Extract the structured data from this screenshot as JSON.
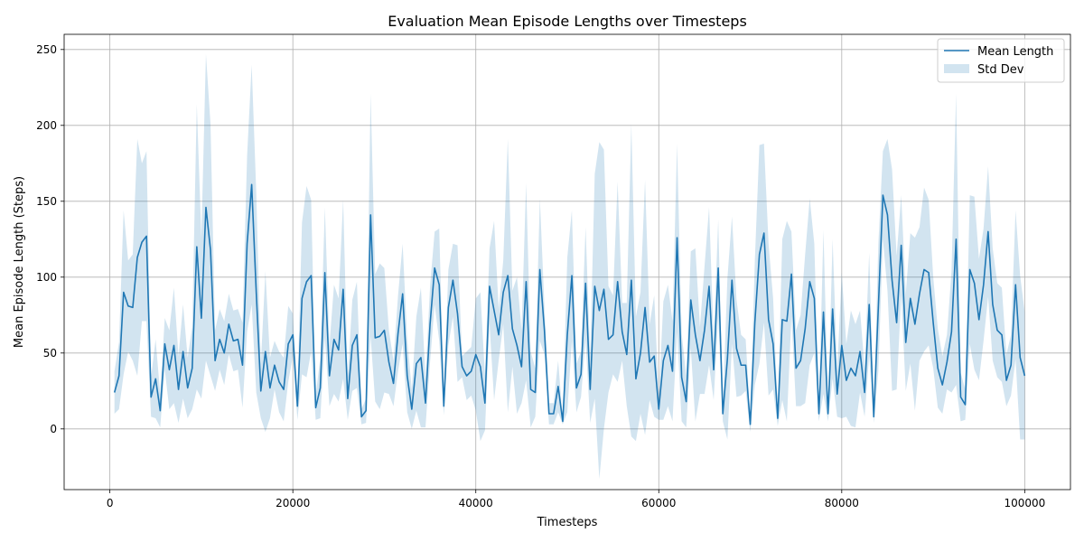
{
  "chart_data": {
    "type": "line",
    "title": "Evaluation Mean Episode Lengths over Timesteps",
    "xlabel": "Timesteps",
    "ylabel": "Mean Episode Length (Steps)",
    "xlim": [
      -5000,
      105000
    ],
    "ylim": [
      -40,
      260
    ],
    "xticks": [
      0,
      20000,
      40000,
      60000,
      80000,
      100000
    ],
    "xtick_labels": [
      "0",
      "20000",
      "40000",
      "60000",
      "80000",
      "100000"
    ],
    "yticks": [
      0,
      50,
      100,
      150,
      200,
      250
    ],
    "ytick_labels": [
      "0",
      "50",
      "100",
      "150",
      "200",
      "250"
    ],
    "grid": true,
    "legend_position": "top-right",
    "colors": {
      "line": "#1f77b4",
      "band": "#1f77b4"
    },
    "series": [
      {
        "name": "Mean Length",
        "x_start": 500,
        "x_step": 500,
        "values": [
          24,
          35,
          90,
          81,
          80,
          113,
          123,
          127,
          21,
          33,
          12,
          56,
          39,
          55,
          26,
          51,
          27,
          40,
          120,
          73,
          146,
          118,
          45,
          59,
          50,
          69,
          58,
          59,
          42,
          122,
          161,
          90,
          25,
          51,
          27,
          42,
          31,
          26,
          56,
          62,
          15,
          86,
          97,
          101,
          14,
          27,
          103,
          35,
          59,
          52,
          92,
          20,
          55,
          62,
          8,
          12,
          141,
          60,
          61,
          65,
          44,
          30,
          63,
          89,
          35,
          13,
          43,
          47,
          17,
          69,
          106,
          95,
          15,
          80,
          98,
          76,
          41,
          35,
          38,
          49,
          41,
          17,
          94,
          78,
          62,
          90,
          101,
          66,
          55,
          41,
          97,
          26,
          24,
          105,
          65,
          10,
          10,
          28,
          5,
          62,
          101,
          27,
          36,
          96,
          26,
          94,
          78,
          92,
          59,
          62,
          97,
          64,
          49,
          98,
          33,
          50,
          80,
          44,
          48,
          13,
          45,
          55,
          38,
          126,
          34,
          18,
          85,
          62,
          45,
          65,
          94,
          39,
          106,
          10,
          46,
          98,
          53,
          42,
          42,
          3,
          70,
          115,
          129,
          72,
          56,
          7,
          72,
          71,
          102,
          40,
          45,
          66,
          97,
          86,
          10,
          77,
          10,
          79,
          23,
          55,
          32,
          40,
          35,
          51,
          24,
          82,
          8,
          80,
          154,
          141,
          98,
          70,
          121,
          57,
          86,
          69,
          89,
          105,
          103,
          70,
          40,
          29,
          44,
          64,
          125,
          21,
          16,
          105,
          96,
          72,
          95,
          130,
          82,
          65,
          62,
          32,
          42,
          95,
          47,
          35
        ]
      },
      {
        "name": "Std Dev",
        "kind": "band",
        "std": [
          14,
          22,
          54,
          30,
          35,
          78,
          52,
          56,
          13,
          26,
          11,
          17,
          26,
          38,
          22,
          31,
          20,
          27,
          94,
          53,
          101,
          83,
          20,
          20,
          21,
          20,
          20,
          20,
          28,
          58,
          79,
          66,
          18,
          53,
          20,
          16,
          20,
          21,
          25,
          14,
          9,
          50,
          63,
          50,
          8,
          20,
          43,
          20,
          36,
          34,
          59,
          14,
          30,
          35,
          5,
          8,
          80,
          42,
          48,
          41,
          21,
          15,
          25,
          33,
          24,
          13,
          31,
          46,
          16,
          25,
          24,
          37,
          6,
          25,
          24,
          45,
          7,
          16,
          16,
          37,
          49,
          18,
          25,
          59,
          17,
          21,
          90,
          25,
          45,
          24,
          65,
          25,
          16,
          47,
          16,
          7,
          7,
          17,
          2,
          51,
          43,
          16,
          15,
          37,
          22,
          74,
          111,
          92,
          35,
          26,
          66,
          19,
          34,
          103,
          41,
          40,
          84,
          25,
          40,
          7,
          39,
          40,
          33,
          62,
          29,
          17,
          32,
          57,
          22,
          42,
          52,
          20,
          32,
          5,
          53,
          42,
          32,
          20,
          17,
          5,
          41,
          72,
          59,
          50,
          30,
          5,
          53,
          66,
          28,
          25,
          30,
          49,
          55,
          36,
          5,
          54,
          5,
          46,
          15,
          48,
          24,
          38,
          34,
          27,
          16,
          34,
          4,
          42,
          29,
          50,
          73,
          44,
          33,
          32,
          43,
          57,
          44,
          54,
          48,
          30,
          26,
          19,
          18,
          40,
          96,
          16,
          10,
          49,
          57,
          40,
          37,
          43,
          37,
          31,
          31,
          17,
          20,
          49,
          54,
          42
        ]
      }
    ]
  }
}
